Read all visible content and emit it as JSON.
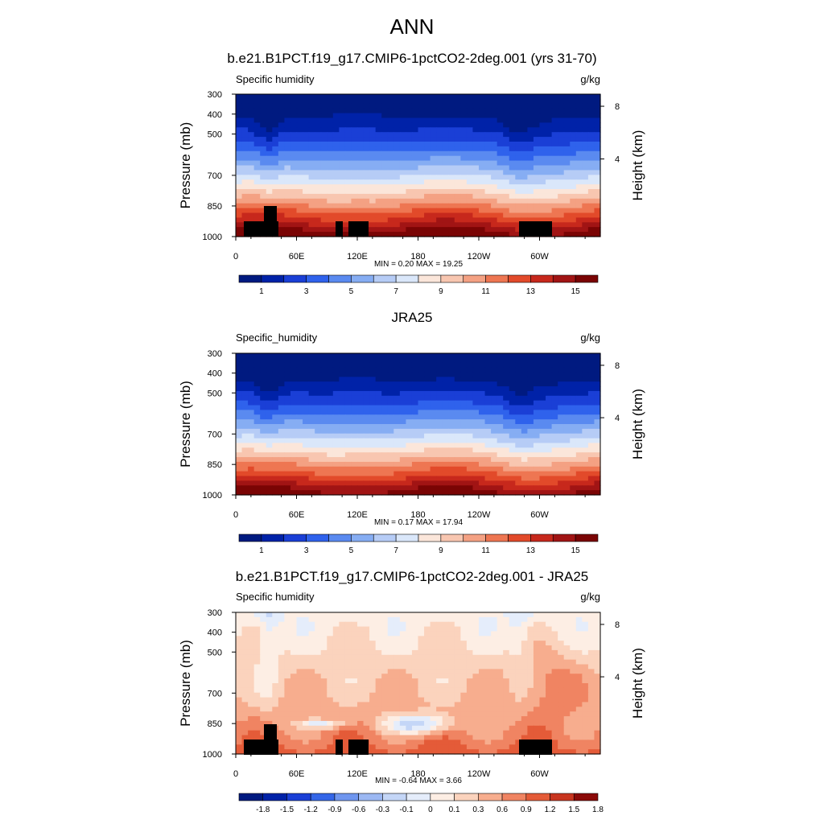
{
  "page": {
    "title": "ANN"
  },
  "colors": {
    "abs_scale": [
      "#001a80",
      "#0022a8",
      "#1a3fd6",
      "#2f62ec",
      "#5a8af0",
      "#86adf3",
      "#b6ccf6",
      "#dae7fa",
      "#fbe6da",
      "#f8c6b0",
      "#f4a183",
      "#ee7652",
      "#e24a2a",
      "#c7281c",
      "#a11414",
      "#7a0404"
    ],
    "diff_scale": [
      "#001a80",
      "#0022a8",
      "#1a3fd6",
      "#3466e8",
      "#6f96ef",
      "#9cb8f3",
      "#c4d6f7",
      "#e5edfb",
      "#fdeee4",
      "#fbd3bd",
      "#f7ad8e",
      "#f08462",
      "#e45b38",
      "#c8351f",
      "#8b0a08"
    ]
  },
  "chart_data": [
    {
      "type": "heatmap",
      "title": "b.e21.B1PCT.f19_g17.CMIP6-1pctCO2-2deg.001 (yrs 31-70)",
      "left_label": "Specific humidity",
      "units": "g/kg",
      "ylabel": "Pressure (mb)",
      "y2label": "Height (km)",
      "x_ticks": [
        "0",
        "60E",
        "120E",
        "180",
        "120W",
        "60W"
      ],
      "y_ticks": [
        "300",
        "400",
        "500",
        "700",
        "850",
        "1000"
      ],
      "y2_ticks": [
        "8",
        "4"
      ],
      "stats": "MIN =   0.20  MAX =  19.25",
      "colorbar_labels": [
        "1",
        "3",
        "5",
        "7",
        "9",
        "11",
        "13",
        "15"
      ],
      "range": [
        0.2,
        19.25
      ],
      "topography": true
    },
    {
      "type": "heatmap",
      "title": "JRA25",
      "left_label": "Specific_humidity",
      "units": "g/kg",
      "ylabel": "Pressure (mb)",
      "y2label": "Height (km)",
      "x_ticks": [
        "0",
        "60E",
        "120E",
        "180",
        "120W",
        "60W"
      ],
      "y_ticks": [
        "300",
        "400",
        "500",
        "700",
        "850",
        "1000"
      ],
      "y2_ticks": [
        "8",
        "4"
      ],
      "stats": "MIN =   0.17  MAX =  17.94",
      "colorbar_labels": [
        "1",
        "3",
        "5",
        "7",
        "9",
        "11",
        "13",
        "15"
      ],
      "range": [
        0.17,
        17.94
      ],
      "topography": false
    },
    {
      "type": "heatmap",
      "title": "b.e21.B1PCT.f19_g17.CMIP6-1pctCO2-2deg.001 - JRA25",
      "left_label": "Specific humidity",
      "units": "g/kg",
      "ylabel": "Pressure (mb)",
      "y2label": "Height (km)",
      "x_ticks": [
        "0",
        "60E",
        "120E",
        "180",
        "120W",
        "60W"
      ],
      "y_ticks": [
        "300",
        "400",
        "500",
        "700",
        "850",
        "1000"
      ],
      "y2_ticks": [
        "8",
        "4"
      ],
      "stats": "MIN =  -0.64  MAX =   3.66",
      "colorbar_labels": [
        "-1.8",
        "-1.5",
        "-1.2",
        "-0.9",
        "-0.6",
        "-0.3",
        "-0.1",
        "0",
        "0.1",
        "0.3",
        "0.6",
        "0.9",
        "1.2",
        "1.5",
        "1.8"
      ],
      "range": [
        -0.64,
        3.66
      ],
      "topography": true
    }
  ]
}
